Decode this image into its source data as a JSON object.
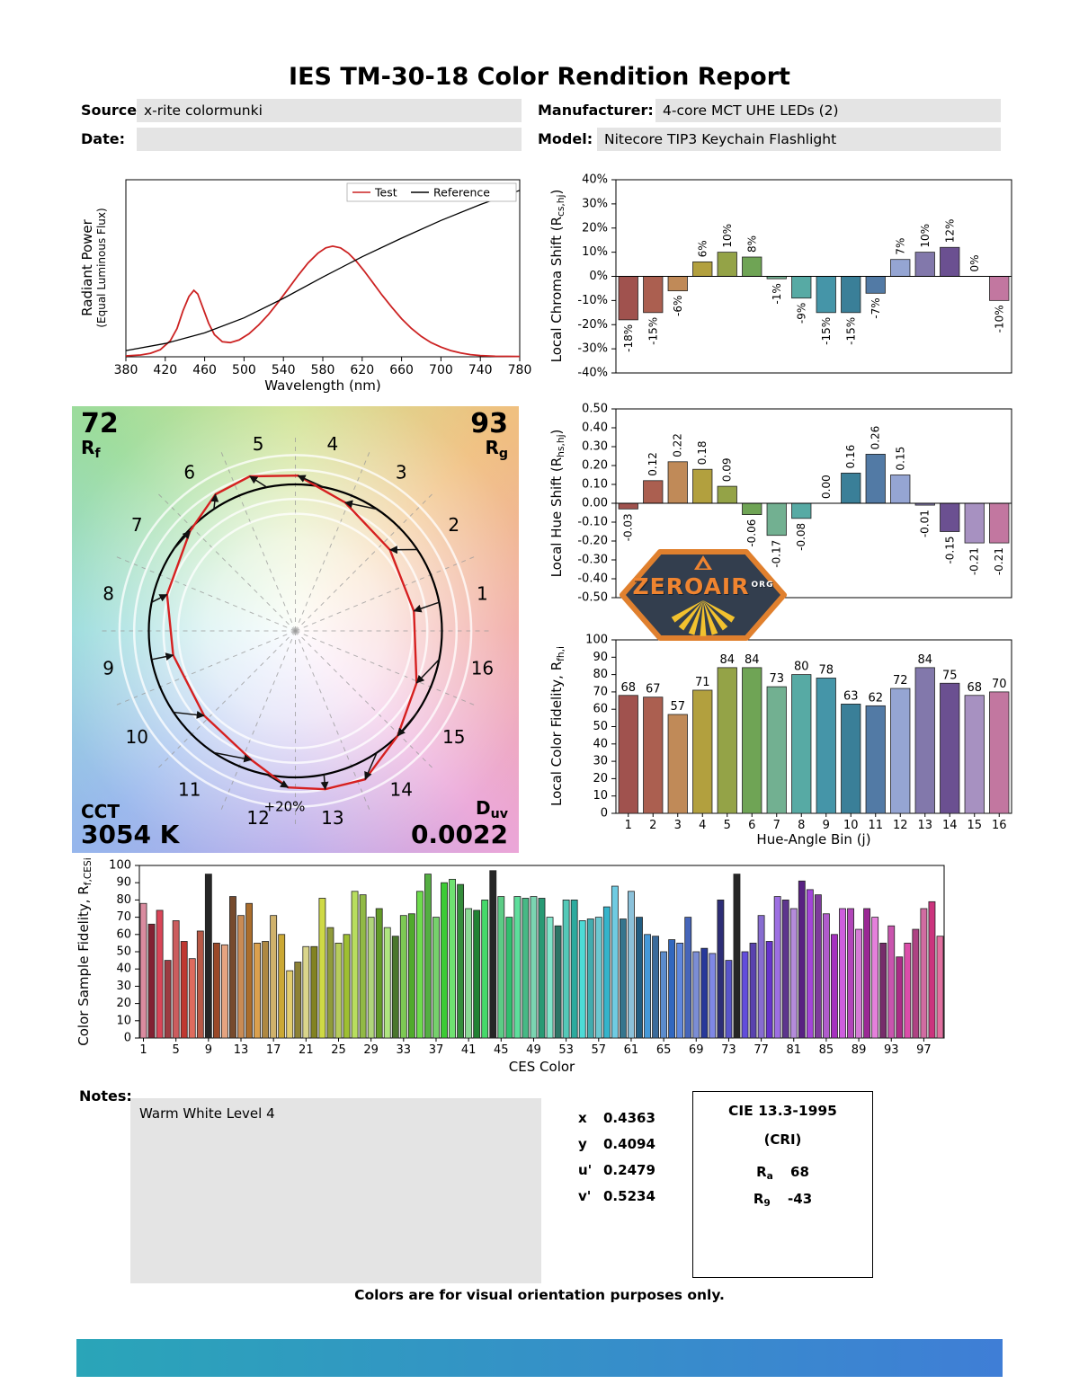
{
  "title": "IES TM-30-18 Color Rendition Report",
  "header": {
    "source_label": "Source:",
    "source_value": "x-rite colormunki",
    "date_label": "Date:",
    "date_value": "",
    "manufacturer_label": "Manufacturer:",
    "manufacturer_value": "4-core MCT UHE LEDs (2)",
    "model_label": "Model:",
    "model_value": "Nitecore TIP3 Keychain Flashlight"
  },
  "bin_colors": [
    "#a0524e",
    "#ab5f50",
    "#c08a58",
    "#b2a03e",
    "#94a347",
    "#6fa455",
    "#72b091",
    "#57aaa4",
    "#4595a8",
    "#3a7f98",
    "#527aa5",
    "#95a5d3",
    "#8278ab",
    "#6b5091",
    "#a791c1",
    "#c277a0"
  ],
  "chart_data": [
    {
      "id": "spd",
      "type": "line",
      "xlabel": "Wavelength (nm)",
      "ylabel_line1": "Radiant Power",
      "ylabel_line2": "(Equal Luminous Flux)",
      "xlim": [
        380,
        780
      ],
      "xstep": 40,
      "ylim": [
        0,
        1
      ],
      "legend_position": "top-right",
      "series": [
        {
          "name": "Test",
          "color": "#cc2222",
          "legend_text_color": "#cc2222",
          "x": [
            380,
            395,
            405,
            415,
            425,
            432,
            438,
            444,
            449,
            453,
            458,
            464,
            470,
            478,
            486,
            495,
            505,
            515,
            525,
            535,
            545,
            555,
            565,
            575,
            583,
            590,
            598,
            606,
            614,
            622,
            630,
            640,
            650,
            660,
            670,
            680,
            690,
            700,
            710,
            720,
            730,
            740,
            755,
            780
          ],
          "y": [
            0.005,
            0.01,
            0.02,
            0.04,
            0.09,
            0.16,
            0.26,
            0.34,
            0.375,
            0.355,
            0.28,
            0.19,
            0.125,
            0.085,
            0.08,
            0.095,
            0.13,
            0.18,
            0.24,
            0.31,
            0.385,
            0.46,
            0.53,
            0.585,
            0.615,
            0.625,
            0.615,
            0.585,
            0.54,
            0.485,
            0.425,
            0.35,
            0.28,
            0.215,
            0.16,
            0.115,
            0.08,
            0.055,
            0.035,
            0.022,
            0.012,
            0.007,
            0.003,
            0.002
          ]
        },
        {
          "name": "Reference",
          "color": "#000000",
          "legend_text_color": "#000000",
          "x": [
            380,
            420,
            460,
            500,
            540,
            580,
            620,
            660,
            700,
            740,
            780
          ],
          "y": [
            0.035,
            0.075,
            0.135,
            0.22,
            0.33,
            0.45,
            0.565,
            0.67,
            0.77,
            0.86,
            0.94
          ]
        }
      ]
    },
    {
      "id": "chroma_shift",
      "type": "bar",
      "ylabel": {
        "base": "Local Chroma Shift (R",
        "sub": "cs,hj",
        "suffix": ")"
      },
      "ylim": [
        -40,
        40
      ],
      "ystep": 10,
      "value_format": "pct",
      "value_labels": "rotated",
      "show_xticks": false,
      "categories": [
        1,
        2,
        3,
        4,
        5,
        6,
        7,
        8,
        9,
        10,
        11,
        12,
        13,
        14,
        15,
        16
      ],
      "values": [
        -18,
        -15,
        -6,
        6,
        10,
        8,
        -1,
        -9,
        -15,
        -15,
        -7,
        7,
        10,
        12,
        0,
        -10
      ]
    },
    {
      "id": "hue_shift",
      "type": "bar",
      "ylabel": {
        "base": "Local Hue Shift (R",
        "sub": "hs,hj",
        "suffix": ")"
      },
      "ylim": [
        -0.5,
        0.5
      ],
      "ystep": 0.1,
      "value_format": "dec2",
      "value_labels": "rotated",
      "show_xticks": false,
      "categories": [
        1,
        2,
        3,
        4,
        5,
        6,
        7,
        8,
        9,
        10,
        11,
        12,
        13,
        14,
        15,
        16
      ],
      "values": [
        -0.03,
        0.12,
        0.22,
        0.18,
        0.09,
        -0.06,
        -0.17,
        -0.08,
        0.0,
        0.16,
        0.26,
        0.15,
        -0.01,
        -0.15,
        -0.21,
        -0.21
      ]
    },
    {
      "id": "local_fidelity",
      "type": "bar",
      "ylabel": {
        "base": "Local Color Fidelity, R",
        "sub": "fh,i",
        "suffix": ""
      },
      "xlabel": "Hue-Angle Bin (j)",
      "ylim": [
        0,
        100
      ],
      "ystep": 10,
      "value_format": "int",
      "value_labels": "above",
      "show_xticks": true,
      "categories": [
        1,
        2,
        3,
        4,
        5,
        6,
        7,
        8,
        9,
        10,
        11,
        12,
        13,
        14,
        15,
        16
      ],
      "values": [
        68,
        67,
        57,
        71,
        84,
        84,
        73,
        80,
        78,
        63,
        62,
        72,
        84,
        75,
        68,
        70
      ]
    },
    {
      "id": "ces_fidelity",
      "type": "bar",
      "ylabel": {
        "base": "Color Sample Fidelity, R",
        "sub": "f,CESi",
        "suffix": ""
      },
      "xlabel": "CES Color",
      "ylim": [
        0,
        100
      ],
      "ystep": 10,
      "value_format": "int",
      "value_labels": "none",
      "xtick_labels": [
        1,
        5,
        9,
        13,
        17,
        21,
        25,
        29,
        33,
        37,
        41,
        45,
        49,
        53,
        57,
        61,
        65,
        69,
        73,
        77,
        81,
        85,
        89,
        93,
        97
      ],
      "values": [
        78,
        66,
        74,
        45,
        68,
        56,
        46,
        62,
        95,
        55,
        54,
        82,
        71,
        78,
        55,
        56,
        71,
        60,
        39,
        44,
        53,
        53,
        81,
        64,
        55,
        60,
        85,
        83,
        70,
        75,
        64,
        59,
        71,
        72,
        85,
        95,
        70,
        90,
        92,
        89,
        75,
        74,
        80,
        97,
        82,
        70,
        82,
        81,
        82,
        81,
        70,
        65,
        80,
        80,
        68,
        69,
        70,
        76,
        88,
        69,
        85,
        70,
        60,
        59,
        50,
        57,
        55,
        70,
        50,
        52,
        49,
        80,
        45,
        95,
        50,
        55,
        71,
        56,
        82,
        80,
        75,
        91,
        86,
        83,
        72,
        60,
        75,
        75,
        63,
        75,
        70,
        55,
        65,
        47,
        55,
        63,
        75,
        79,
        59
      ]
    }
  ],
  "cvg": {
    "rf_value": "72",
    "rf_base": "R",
    "rf_sub": "f",
    "rg_value": "93",
    "rg_base": "R",
    "rg_sub": "g",
    "cct_label": "CCT",
    "cct_value": "3054 K",
    "duv_base": "D",
    "duv_sub": "uv",
    "duv_value": "0.0022",
    "ring_label": "+20%",
    "bins": [
      1,
      2,
      3,
      4,
      5,
      6,
      7,
      8,
      9,
      10,
      11,
      12,
      13,
      14,
      15,
      16
    ]
  },
  "watermark": {
    "title": "ZEROAIR",
    "org": "ORG"
  },
  "notes": {
    "label": "Notes:",
    "value": "Warm White Level 4"
  },
  "chromaticity": {
    "rows": [
      {
        "label": "x",
        "value": "0.4363"
      },
      {
        "label": "y",
        "value": "0.4094"
      },
      {
        "label": "u'",
        "value": "0.2479"
      },
      {
        "label": "v'",
        "value": "0.5234"
      }
    ]
  },
  "cri": {
    "title": "CIE 13.3-1995",
    "subtitle": "(CRI)",
    "ra_base": "R",
    "ra_sub": "a",
    "ra_value": "68",
    "r9_base": "R",
    "r9_sub": "9",
    "r9_value": "-43"
  },
  "footer": "Colors are for visual orientation purposes only."
}
